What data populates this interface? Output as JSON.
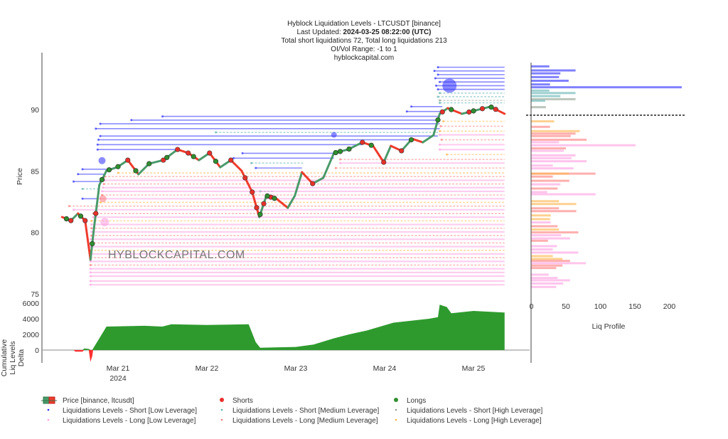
{
  "title": {
    "line1": "Hyblock Liquidation Levels - LTCUSDT [binance]",
    "updated_label": "Last Updated: ",
    "updated_value": "2024-03-25 08:22:00 (UTC)",
    "line3": "Total short liquidations 72, Total long liquidations 213",
    "line4": "OI/Vol Range: -1 to 1",
    "line5": "hyblockcapital.com"
  },
  "watermark": "HYBLOCKCAPITAL.COM",
  "colors": {
    "sl": "#2b2bff",
    "sm": "#5fb0b0",
    "sh": "#8fa08f",
    "ll": "#ff9de0",
    "lm": "#ff7a7a",
    "lh": "#ffb347",
    "up": "#4a9a6a",
    "down": "#ef3b2c",
    "delta_pos": "#2e9a2e",
    "delta_neg": "#ff3030",
    "short_marker": "#e8302a",
    "long_marker": "#2f8f2f"
  },
  "chart_data": [
    {
      "type": "line",
      "name": "price",
      "ylabel": "Price",
      "ylim": [
        75,
        94.8
      ],
      "yticks": [
        "75",
        "80",
        "85",
        "90"
      ],
      "ytick_values": [
        75,
        80,
        85,
        90
      ],
      "xticks": [
        "Mar 21",
        "Mar 22",
        "Mar 23",
        "Mar 24",
        "Mar 25"
      ],
      "xtick_values": [
        21,
        22,
        23,
        24,
        25
      ],
      "xyear": "2024",
      "xlim": [
        20.15,
        25.63
      ],
      "price": [
        [
          20.37,
          81.31
        ],
        [
          20.47,
          81.02
        ],
        [
          20.55,
          81.6
        ],
        [
          20.63,
          81.02
        ],
        [
          20.69,
          77.84
        ],
        [
          20.73,
          80.44
        ],
        [
          20.79,
          83.92
        ],
        [
          20.87,
          85.08
        ],
        [
          20.99,
          85.36
        ],
        [
          21.11,
          85.94
        ],
        [
          21.23,
          84.79
        ],
        [
          21.35,
          85.65
        ],
        [
          21.51,
          85.94
        ],
        [
          21.67,
          86.81
        ],
        [
          21.79,
          86.52
        ],
        [
          21.91,
          85.94
        ],
        [
          22.03,
          86.52
        ],
        [
          22.15,
          85.36
        ],
        [
          22.27,
          85.94
        ],
        [
          22.39,
          85.08
        ],
        [
          22.51,
          83.34
        ],
        [
          22.59,
          81.31
        ],
        [
          22.67,
          83.05
        ],
        [
          22.79,
          82.76
        ],
        [
          22.91,
          82.06
        ],
        [
          22.99,
          83.05
        ],
        [
          23.07,
          84.96
        ],
        [
          23.19,
          84.03
        ],
        [
          23.31,
          84.5
        ],
        [
          23.43,
          86.52
        ],
        [
          23.59,
          86.81
        ],
        [
          23.75,
          87.39
        ],
        [
          23.87,
          87.1
        ],
        [
          23.99,
          85.77
        ],
        [
          24.07,
          87.1
        ],
        [
          24.19,
          86.7
        ],
        [
          24.31,
          87.68
        ],
        [
          24.43,
          87.39
        ],
        [
          24.55,
          87.97
        ],
        [
          24.62,
          89.71
        ],
        [
          24.71,
          90.17
        ],
        [
          24.87,
          89.71
        ],
        [
          25.03,
          90.0
        ],
        [
          25.19,
          90.29
        ],
        [
          25.35,
          89.71
        ]
      ],
      "shorts": [
        20.47,
        20.63,
        20.75,
        21.11,
        21.51,
        21.67,
        21.79,
        22.03,
        22.27,
        22.43,
        22.51,
        22.56,
        22.64,
        22.72,
        23.19,
        23.75,
        23.99,
        24.19,
        24.65,
        24.95,
        25.1,
        25.25
      ],
      "longs": [
        20.42,
        20.58,
        20.71,
        20.82,
        20.9,
        21.0,
        21.2,
        21.35,
        21.55,
        21.85,
        22.1,
        22.6,
        22.68,
        22.76,
        23.45,
        23.5,
        23.6,
        23.85,
        24.3,
        24.6,
        24.75,
        25.0,
        25.2
      ],
      "bubbles": [
        [
          24.73,
          92.0,
          "sl",
          10
        ],
        [
          23.43,
          88.0,
          "sl",
          4
        ],
        [
          20.82,
          85.9,
          "sl",
          5
        ],
        [
          20.85,
          80.9,
          "ll",
          6
        ],
        [
          20.83,
          82.8,
          "lm",
          5
        ]
      ],
      "levels": [
        [
          93.5,
          24.6,
          25.35,
          "sl"
        ],
        [
          93.2,
          24.56,
          25.35,
          "sl"
        ],
        [
          92.9,
          24.6,
          25.35,
          "sl"
        ],
        [
          92.6,
          24.57,
          25.35,
          "sl"
        ],
        [
          92.3,
          24.62,
          25.35,
          "sl"
        ],
        [
          92.0,
          24.58,
          25.35,
          "sl"
        ],
        [
          91.7,
          24.6,
          25.35,
          "sl"
        ],
        [
          91.4,
          24.62,
          25.35,
          "sm"
        ],
        [
          91.1,
          24.6,
          25.35,
          "sm"
        ],
        [
          90.8,
          24.62,
          25.35,
          "sh"
        ],
        [
          90.6,
          24.62,
          25.35,
          "sm"
        ],
        [
          90.3,
          24.3,
          24.65,
          "sl"
        ],
        [
          89.9,
          24.25,
          24.65,
          "sl"
        ],
        [
          89.5,
          21.5,
          24.62,
          "sl"
        ],
        [
          89.2,
          21.15,
          24.62,
          "sl"
        ],
        [
          88.9,
          20.8,
          24.62,
          "sl"
        ],
        [
          88.5,
          20.75,
          24.62,
          "sl"
        ],
        [
          88.2,
          22.1,
          24.6,
          "sm"
        ],
        [
          87.9,
          20.8,
          24.6,
          "sl"
        ],
        [
          87.6,
          20.78,
          24.3,
          "sl"
        ],
        [
          87.2,
          20.77,
          23.75,
          "sl"
        ],
        [
          86.8,
          20.77,
          21.67,
          "sl"
        ],
        [
          86.5,
          22.4,
          23.43,
          "sl"
        ],
        [
          86.1,
          22.3,
          23.43,
          "sl"
        ],
        [
          85.7,
          22.5,
          23.1,
          "sm"
        ],
        [
          85.3,
          22.55,
          23.07,
          "sl"
        ],
        [
          85.2,
          20.6,
          20.87,
          "sl"
        ],
        [
          84.8,
          20.55,
          20.85,
          "sl"
        ],
        [
          84.2,
          20.5,
          20.82,
          "sl"
        ],
        [
          83.6,
          20.6,
          20.8,
          "sm"
        ],
        [
          83.4,
          22.6,
          22.75,
          "sm"
        ],
        [
          82.8,
          20.6,
          20.78,
          "sl"
        ],
        [
          89.1,
          24.66,
          25.35,
          "lh"
        ],
        [
          88.7,
          24.63,
          25.35,
          "lm"
        ],
        [
          88.3,
          24.62,
          25.35,
          "lh"
        ],
        [
          88.0,
          24.62,
          25.35,
          "ll"
        ],
        [
          87.6,
          24.64,
          25.35,
          "lm"
        ],
        [
          87.2,
          24.62,
          25.35,
          "ll"
        ],
        [
          86.8,
          24.62,
          25.35,
          "ll"
        ],
        [
          86.4,
          24.7,
          25.35,
          "lh"
        ],
        [
          86.0,
          23.5,
          25.35,
          "lm"
        ],
        [
          85.7,
          23.5,
          25.35,
          "ll"
        ],
        [
          85.3,
          23.45,
          25.35,
          "lm"
        ],
        [
          84.9,
          21.0,
          25.35,
          "lh"
        ],
        [
          84.6,
          20.85,
          25.35,
          "lm"
        ],
        [
          84.3,
          20.85,
          25.35,
          "ll"
        ],
        [
          84.0,
          20.84,
          25.35,
          "lm"
        ],
        [
          83.7,
          20.83,
          25.35,
          "ll"
        ],
        [
          83.4,
          20.82,
          25.35,
          "ll"
        ],
        [
          83.1,
          20.82,
          25.35,
          "lm"
        ],
        [
          82.8,
          20.8,
          25.35,
          "ll"
        ],
        [
          82.5,
          20.8,
          25.35,
          "lh"
        ],
        [
          82.2,
          20.45,
          25.35,
          "lm"
        ],
        [
          81.9,
          20.5,
          25.35,
          "ll"
        ],
        [
          81.6,
          20.72,
          25.35,
          "lm"
        ],
        [
          81.3,
          20.72,
          25.35,
          "ll"
        ],
        [
          81.0,
          20.7,
          25.35,
          "lh"
        ],
        [
          80.7,
          20.7,
          25.35,
          "ll"
        ],
        [
          80.4,
          20.7,
          25.35,
          "lm"
        ],
        [
          80.1,
          20.7,
          25.35,
          "ll"
        ],
        [
          79.8,
          20.7,
          25.35,
          "lm"
        ],
        [
          79.5,
          20.69,
          25.35,
          "ll"
        ],
        [
          79.2,
          20.69,
          25.35,
          "lm"
        ],
        [
          78.9,
          20.69,
          25.35,
          "ll"
        ],
        [
          78.6,
          20.69,
          25.35,
          "lh"
        ],
        [
          78.3,
          20.69,
          25.35,
          "ll"
        ],
        [
          78.0,
          20.69,
          25.35,
          "lm"
        ],
        [
          77.7,
          20.69,
          25.35,
          "ll"
        ],
        [
          77.4,
          20.69,
          25.35,
          "lm"
        ],
        [
          77.1,
          20.69,
          25.35,
          "ll"
        ],
        [
          76.8,
          20.69,
          25.35,
          "ll"
        ],
        [
          76.5,
          20.69,
          25.35,
          "ll"
        ],
        [
          76.1,
          20.69,
          25.35,
          "ll"
        ],
        [
          75.8,
          20.69,
          25.35,
          "ll"
        ]
      ]
    },
    {
      "type": "area",
      "name": "cumulative-delta",
      "ylabel": "Cumulative Liq Levels Delta",
      "ylabel_lines": [
        "Cumulative",
        "Liq Levels",
        "Delta"
      ],
      "ylim": [
        -1500,
        6000
      ],
      "yticks": [
        "0",
        "2000",
        "4000",
        "6000"
      ],
      "ytick_values": [
        0,
        2000,
        4000,
        6000
      ],
      "points": [
        [
          20.37,
          0
        ],
        [
          20.5,
          0
        ],
        [
          20.52,
          -200
        ],
        [
          20.6,
          -200
        ],
        [
          20.62,
          200
        ],
        [
          20.67,
          150
        ],
        [
          20.69,
          -1500
        ],
        [
          20.71,
          -800
        ],
        [
          20.72,
          200
        ],
        [
          20.79,
          1500
        ],
        [
          20.87,
          3000
        ],
        [
          21.3,
          3100
        ],
        [
          21.5,
          3000
        ],
        [
          21.6,
          3300
        ],
        [
          22.0,
          3200
        ],
        [
          22.47,
          3300
        ],
        [
          22.55,
          1000
        ],
        [
          22.6,
          300
        ],
        [
          23.0,
          400
        ],
        [
          23.2,
          700
        ],
        [
          23.43,
          1500
        ],
        [
          23.6,
          2000
        ],
        [
          23.8,
          2500
        ],
        [
          24.1,
          3500
        ],
        [
          24.5,
          4000
        ],
        [
          24.6,
          4200
        ],
        [
          24.62,
          5800
        ],
        [
          24.7,
          5500
        ],
        [
          24.75,
          4700
        ],
        [
          25.0,
          5000
        ],
        [
          25.35,
          4800
        ]
      ]
    },
    {
      "type": "bar",
      "name": "liq-profile",
      "orientation": "horizontal",
      "xlabel": "Liq Profile",
      "xticks": [
        "0",
        "50",
        "100",
        "150",
        "200"
      ],
      "xtick_values": [
        0,
        50,
        100,
        150,
        200
      ],
      "current_price": 89.6,
      "bars": [
        [
          93.57,
          26,
          "sl"
        ],
        [
          93.24,
          64,
          "sl"
        ],
        [
          93.0,
          42,
          "sl"
        ],
        [
          92.7,
          40,
          "sl"
        ],
        [
          92.4,
          54,
          "sl"
        ],
        [
          92.1,
          27,
          "sl"
        ],
        [
          91.87,
          218,
          "sl"
        ],
        [
          91.6,
          26,
          "sm"
        ],
        [
          91.4,
          64,
          "sm"
        ],
        [
          91.15,
          42,
          "sm"
        ],
        [
          90.9,
          64,
          "sh"
        ],
        [
          90.77,
          20,
          "sm"
        ],
        [
          90.25,
          21,
          "sh"
        ],
        [
          89.1,
          33,
          "lh"
        ],
        [
          88.65,
          27,
          "lm"
        ],
        [
          88.3,
          70,
          "lh"
        ],
        [
          88.1,
          64,
          "lm"
        ],
        [
          87.9,
          57,
          "lm"
        ],
        [
          87.6,
          80,
          "lm"
        ],
        [
          87.4,
          40,
          "ll"
        ],
        [
          87.15,
          151,
          "ll"
        ],
        [
          86.9,
          50,
          "lm"
        ],
        [
          86.7,
          47,
          "ll"
        ],
        [
          86.33,
          64,
          "ll"
        ],
        [
          86.1,
          58,
          "ll"
        ],
        [
          85.85,
          80,
          "ll"
        ],
        [
          85.5,
          31,
          "ll"
        ],
        [
          85.27,
          61,
          "ll"
        ],
        [
          84.84,
          93,
          "lm"
        ],
        [
          84.84,
          54,
          "lh"
        ],
        [
          84.6,
          31,
          "lm"
        ],
        [
          84.26,
          55,
          "lm"
        ],
        [
          83.97,
          42,
          "ll"
        ],
        [
          83.63,
          38,
          "lm"
        ],
        [
          83.34,
          23,
          "ll"
        ],
        [
          83.16,
          93,
          "ll"
        ],
        [
          82.6,
          40,
          "lh"
        ],
        [
          82.37,
          65,
          "lh"
        ],
        [
          82.02,
          40,
          "lm"
        ],
        [
          81.79,
          65,
          "lm"
        ],
        [
          81.44,
          28,
          "lh"
        ],
        [
          81.14,
          27,
          "lh"
        ],
        [
          80.87,
          28,
          "ll"
        ],
        [
          80.56,
          38,
          "lm"
        ],
        [
          80.29,
          40,
          "lh"
        ],
        [
          80.06,
          68,
          "lm"
        ],
        [
          79.83,
          43,
          "ll"
        ],
        [
          79.57,
          56,
          "ll"
        ],
        [
          79.38,
          24,
          "lm"
        ],
        [
          78.94,
          37,
          "ll"
        ],
        [
          78.67,
          31,
          "ll"
        ],
        [
          78.42,
          68,
          "ll"
        ],
        [
          78.13,
          31,
          "lh"
        ],
        [
          77.9,
          45,
          "lh"
        ],
        [
          77.74,
          56,
          "lm"
        ],
        [
          77.55,
          79,
          "ll"
        ],
        [
          77.36,
          45,
          "lm"
        ],
        [
          77.16,
          36,
          "lm"
        ],
        [
          76.62,
          25,
          "ll"
        ],
        [
          76.35,
          38,
          "ll"
        ],
        [
          76.16,
          56,
          "ll"
        ],
        [
          75.9,
          46,
          "ll"
        ],
        [
          75.62,
          36,
          "ll"
        ]
      ]
    }
  ],
  "legend": [
    {
      "label": "Price [binance, ltcusdt]",
      "key": "price"
    },
    {
      "label": "Shorts",
      "key": "short_marker"
    },
    {
      "label": "Longs",
      "key": "long_marker"
    },
    {
      "label": "Liquidations Levels - Short [Low Leverage]",
      "key": "sl"
    },
    {
      "label": "Liquidations Levels - Short [Medium Leverage]",
      "key": "sm"
    },
    {
      "label": "Liquidations Levels - Short [High Leverage]",
      "key": "sh"
    },
    {
      "label": "Liquidations Levels - Long [Low Leverage]",
      "key": "ll"
    },
    {
      "label": "Liquidations Levels - Long [Medium Leverage]",
      "key": "lm"
    },
    {
      "label": "Liquidations Levels - Long [High Leverage]",
      "key": "lh"
    }
  ]
}
